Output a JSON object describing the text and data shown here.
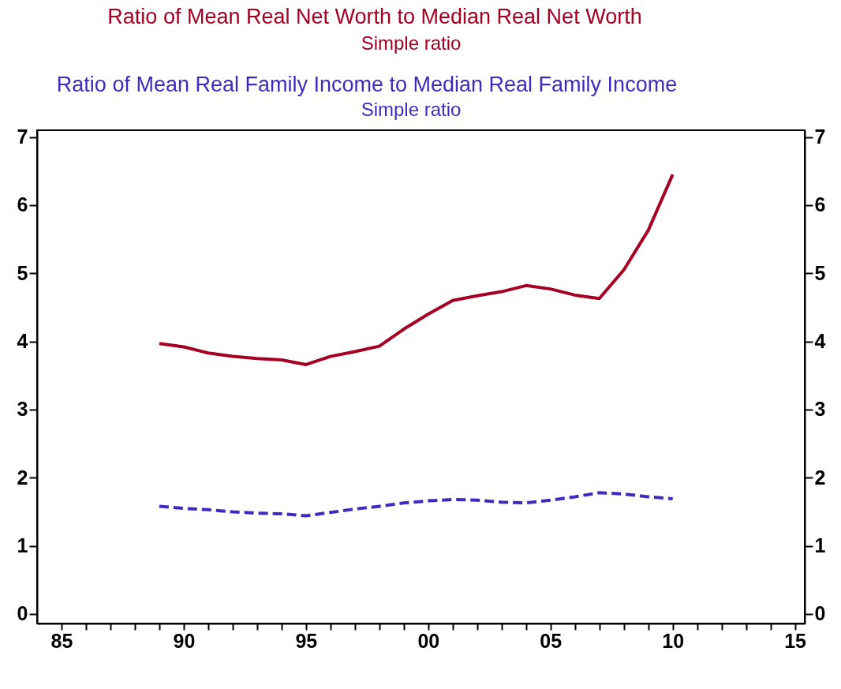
{
  "chart_data": {
    "type": "line",
    "x": [
      1989,
      1990,
      1991,
      1992,
      1993,
      1994,
      1995,
      1996,
      1997,
      1998,
      1999,
      2000,
      2001,
      2002,
      2003,
      2004,
      2005,
      2006,
      2007,
      2008,
      2009,
      2010
    ],
    "series": [
      {
        "name": "Ratio of Mean Real Net Worth to Median Real Net Worth",
        "color": "#a50021",
        "line_style": "solid",
        "values": [
          3.97,
          3.92,
          3.83,
          3.78,
          3.75,
          3.73,
          3.66,
          3.78,
          3.85,
          3.93,
          4.18,
          4.4,
          4.6,
          4.67,
          4.73,
          4.82,
          4.77,
          4.68,
          4.63,
          5.05,
          5.63,
          6.45
        ]
      },
      {
        "name": "Ratio of Mean Real Family Income to Median Real Family Income",
        "color": "#3d2bbf",
        "line_style": "dashed",
        "values": [
          1.58,
          1.55,
          1.53,
          1.5,
          1.48,
          1.47,
          1.44,
          1.49,
          1.54,
          1.58,
          1.63,
          1.66,
          1.68,
          1.67,
          1.64,
          1.63,
          1.67,
          1.72,
          1.78,
          1.76,
          1.72,
          1.69
        ]
      }
    ],
    "annotations": [
      "Simple ratio",
      "Simple ratio"
    ],
    "xlim": [
      1984,
      2015.4
    ],
    "xticks": [
      {
        "value": 1985,
        "label": "85"
      },
      {
        "value": 1986,
        "label": null
      },
      {
        "value": 1987,
        "label": null
      },
      {
        "value": 1988,
        "label": null
      },
      {
        "value": 1989,
        "label": null
      },
      {
        "value": 1990,
        "label": "90"
      },
      {
        "value": 1991,
        "label": null
      },
      {
        "value": 1992,
        "label": null
      },
      {
        "value": 1993,
        "label": null
      },
      {
        "value": 1994,
        "label": null
      },
      {
        "value": 1995,
        "label": "95"
      },
      {
        "value": 1996,
        "label": null
      },
      {
        "value": 1997,
        "label": null
      },
      {
        "value": 1998,
        "label": null
      },
      {
        "value": 1999,
        "label": null
      },
      {
        "value": 2000,
        "label": "00"
      },
      {
        "value": 2001,
        "label": null
      },
      {
        "value": 2002,
        "label": null
      },
      {
        "value": 2003,
        "label": null
      },
      {
        "value": 2004,
        "label": null
      },
      {
        "value": 2005,
        "label": "05"
      },
      {
        "value": 2006,
        "label": null
      },
      {
        "value": 2007,
        "label": null
      },
      {
        "value": 2008,
        "label": null
      },
      {
        "value": 2009,
        "label": null
      },
      {
        "value": 2010,
        "label": "10"
      },
      {
        "value": 2011,
        "label": null
      },
      {
        "value": 2012,
        "label": null
      },
      {
        "value": 2013,
        "label": null
      },
      {
        "value": 2014,
        "label": null
      },
      {
        "value": 2015,
        "label": "15"
      }
    ],
    "ylim": [
      -0.14,
      7.1
    ],
    "yticks": [
      0,
      1,
      2,
      3,
      4,
      5,
      6,
      7
    ],
    "y2lim": [
      -0.14,
      7.1
    ],
    "y2ticks": [
      0,
      1,
      2,
      3,
      4,
      5,
      6,
      7
    ],
    "grid": false,
    "legend": false
  }
}
